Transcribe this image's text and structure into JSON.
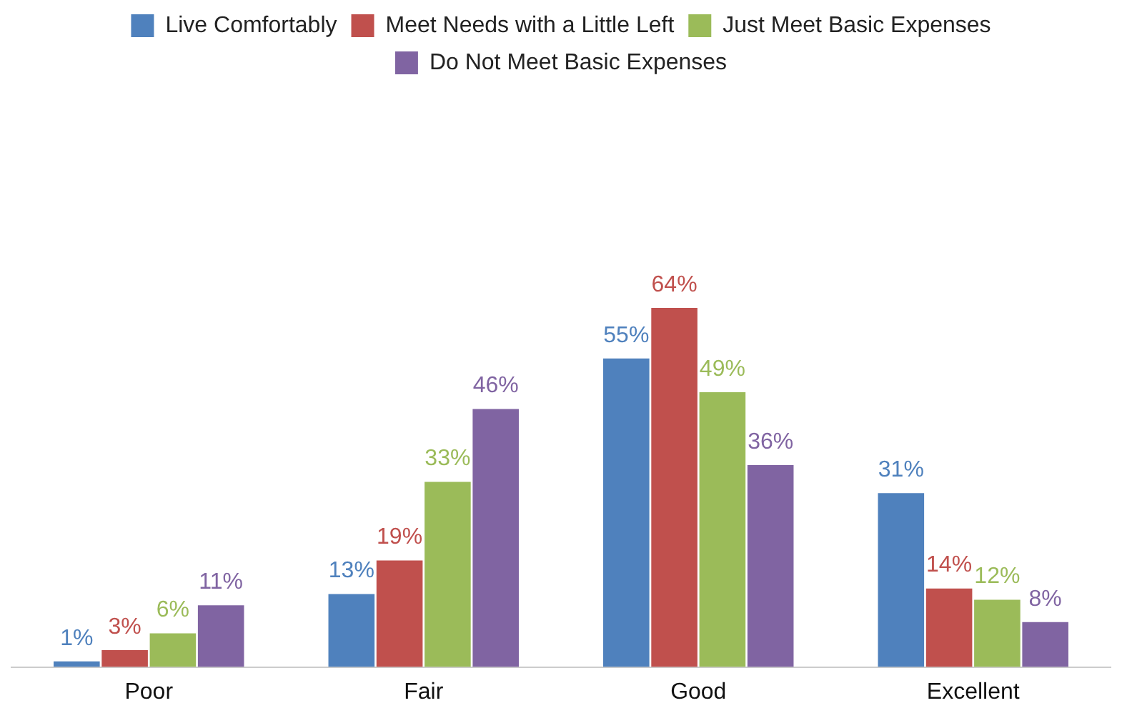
{
  "chart_data": {
    "type": "bar",
    "categories": [
      "Poor",
      "Fair",
      "Good",
      "Excellent"
    ],
    "series": [
      {
        "name": "Live Comfortably",
        "color": "#4f81bd",
        "values": [
          1,
          13,
          55,
          31
        ],
        "value_labels": [
          "1%",
          "13%",
          "55%",
          "31%"
        ]
      },
      {
        "name": "Meet Needs with a Little Left",
        "color": "#c0504d",
        "values": [
          3,
          19,
          64,
          14
        ],
        "value_labels": [
          "3%",
          "19%",
          "64%",
          "14%"
        ]
      },
      {
        "name": "Just Meet Basic Expenses",
        "color": "#9bbb59",
        "values": [
          6,
          33,
          49,
          12
        ],
        "value_labels": [
          "6%",
          "33%",
          "49%",
          "12%"
        ]
      },
      {
        "name": "Do Not Meet Basic Expenses",
        "color": "#8064a2",
        "values": [
          11,
          46,
          36,
          8
        ],
        "value_labels": [
          "11%",
          "46%",
          "36%",
          "8%"
        ]
      }
    ],
    "tick_labels": "x",
    "grid": false,
    "legend": "top"
  }
}
